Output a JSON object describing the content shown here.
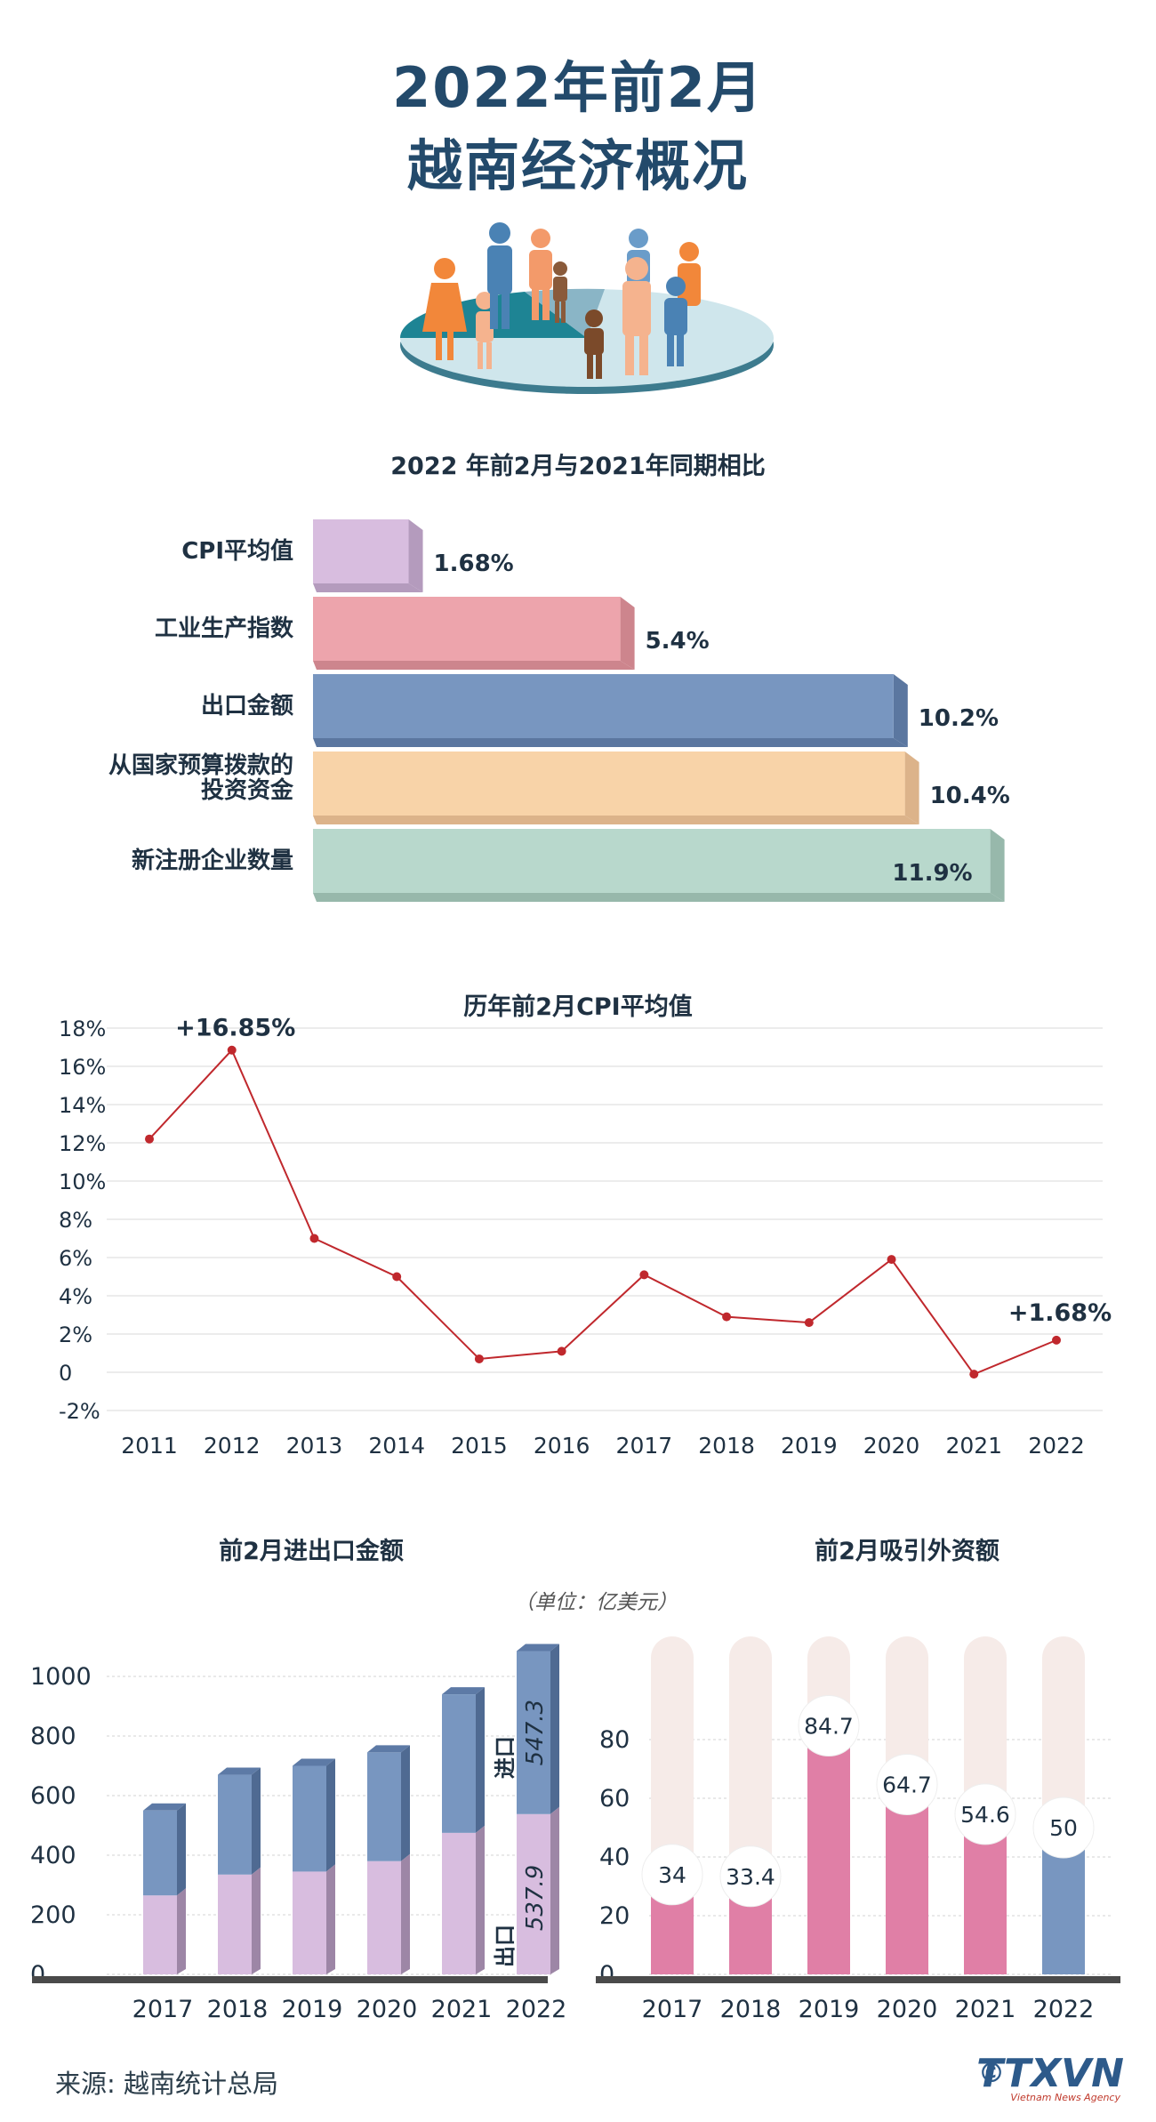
{
  "header": {
    "title_line1": "2022年前2月",
    "title_line2": "越南经济概况"
  },
  "colors": {
    "title": "#234a6b",
    "cpi_line": "#c0282d",
    "export_bar": "#7896c0",
    "import_bar": "#d8bddf",
    "fdi_pink": "#e07fa6",
    "fdi_blue": "#7896c0",
    "fdi_track": "#f6ebe8"
  },
  "section1": {
    "title": "2022 年前2月与2021年同期相比"
  },
  "section2": {
    "title": "历年前2月CPI平均值",
    "annotation_2012": "+16.85%",
    "annotation_2022": "+1.68%"
  },
  "section3": {
    "title": "前2月进出口金额",
    "export_value_label": "547.3",
    "import_value_label": "537.9",
    "export_series_label": "进口",
    "import_series_label": "出口"
  },
  "section4": {
    "title": "前2月吸引外资额",
    "unit": "（单位：亿美元）"
  },
  "footer": {
    "source": "来源: 越南统计总局",
    "copyright": "©",
    "logo": "TTXVN",
    "logo_sub": "Vietnam News Agency"
  },
  "chart_data": [
    {
      "type": "bar",
      "orientation": "horizontal",
      "title": "2022 年前2月与2021年同期相比",
      "categories": [
        "CPI平均值",
        "工业生产指数",
        "出口金额",
        "从国家预算拨款的投资资金",
        "新注册企业数量"
      ],
      "category_lines": [
        [
          "CPI平均值"
        ],
        [
          "工业生产指数"
        ],
        [
          "出口金额"
        ],
        [
          "从国家预算拨款的",
          "投资资金"
        ],
        [
          "新注册企业数量"
        ]
      ],
      "values": [
        1.68,
        5.4,
        10.2,
        10.4,
        11.9
      ],
      "value_labels": [
        "1.68%",
        "5.4%",
        "10.2%",
        "10.4%",
        "11.9%"
      ],
      "colors": [
        "#d8bddf",
        "#eda4ac",
        "#7896c0",
        "#f8d3a8",
        "#b8d8cc"
      ],
      "side_colors": [
        "#b49bbd",
        "#cd858d",
        "#5b77a0",
        "#dcb38a",
        "#97b8ab"
      ]
    },
    {
      "type": "line",
      "title": "历年前2月CPI平均值",
      "x": [
        "2011",
        "2012",
        "2013",
        "2014",
        "2015",
        "2016",
        "2017",
        "2018",
        "2019",
        "2020",
        "2021",
        "2022"
      ],
      "values": [
        12.2,
        16.85,
        7.0,
        5.0,
        0.7,
        1.1,
        5.1,
        2.9,
        2.6,
        5.9,
        -0.1,
        1.68
      ],
      "ylim": [
        -2,
        18
      ],
      "yticks": [
        "18%",
        "16%",
        "14%",
        "12%",
        "10%",
        "8%",
        "6%",
        "4%",
        "2%",
        "0",
        "-2%"
      ],
      "grid": true
    },
    {
      "type": "bar",
      "stacked": true,
      "title": "前2月进出口金额",
      "categories": [
        "2017",
        "2018",
        "2019",
        "2020",
        "2021",
        "2022"
      ],
      "series": [
        {
          "name": "出口",
          "values": [
            265,
            335,
            345,
            380,
            475,
            537.9
          ]
        },
        {
          "name": "进口",
          "values": [
            285,
            335,
            355,
            365,
            465,
            547.3
          ]
        }
      ],
      "ylim": [
        0,
        1100
      ],
      "yticks": [
        "0",
        "200",
        "400",
        "600",
        "800",
        "1000"
      ]
    },
    {
      "type": "bar",
      "title": "前2月吸引外资额",
      "categories": [
        "2017",
        "2018",
        "2019",
        "2020",
        "2021",
        "2022"
      ],
      "values": [
        34,
        33.4,
        84.7,
        64.7,
        54.6,
        50
      ],
      "value_labels": [
        "34",
        "33.4",
        "84.7",
        "64.7",
        "54.6",
        "50"
      ],
      "ylim": [
        0,
        100
      ],
      "yticks": [
        "0",
        "20",
        "40",
        "60",
        "80"
      ]
    }
  ]
}
